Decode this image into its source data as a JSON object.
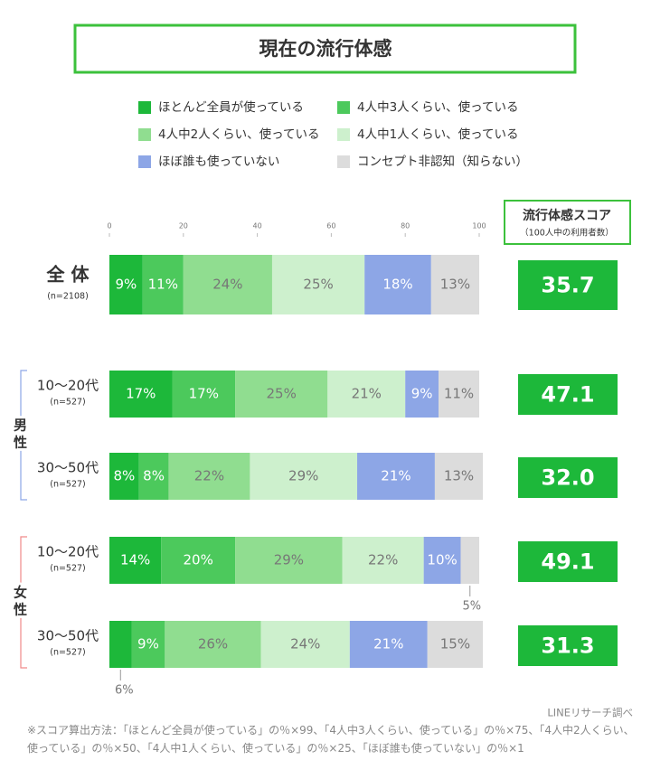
{
  "chart_data": {
    "type": "stacked_bar_horizontal",
    "title": "現在の流行体感",
    "categories": [
      "全 体",
      "10〜20代",
      "30〜50代",
      "10〜20代",
      "30〜50代"
    ],
    "category_notes": [
      "(n=2108)",
      "(n=527)",
      "(n=527)",
      "(n=527)",
      "(n=527)"
    ],
    "groups": [
      "男性",
      "女性"
    ],
    "xlim": [
      0,
      100
    ],
    "xticks": [
      0,
      20,
      40,
      60,
      80,
      100
    ],
    "series": [
      {
        "name": "ほとんど全員が使っている",
        "color": "#1db83a",
        "label_color": "#ffffff",
        "values": [
          9,
          17,
          8,
          14,
          6
        ],
        "value_labels": [
          "9%",
          "17%",
          "8%",
          "14%",
          "6%"
        ]
      },
      {
        "name": "4人中3人くらい、使っている",
        "color": "#4cc95c",
        "label_color": "#ffffff",
        "values": [
          11,
          17,
          8,
          20,
          9
        ],
        "value_labels": [
          "11%",
          "17%",
          "8%",
          "20%",
          "9%"
        ]
      },
      {
        "name": "4人中2人くらい、使っている",
        "color": "#90dd90",
        "label_color": "#777777",
        "values": [
          24,
          25,
          22,
          29,
          26
        ],
        "value_labels": [
          "24%",
          "25%",
          "22%",
          "29%",
          "26%"
        ]
      },
      {
        "name": "4人中1人くらい、使っている",
        "color": "#cdf0cd",
        "label_color": "#777777",
        "values": [
          25,
          21,
          29,
          22,
          24
        ],
        "value_labels": [
          "25%",
          "21%",
          "29%",
          "22%",
          "24%"
        ]
      },
      {
        "name": "ほぼ誰も使っていない",
        "color": "#8da6e6",
        "label_color": "#ffffff",
        "values": [
          18,
          9,
          21,
          10,
          21
        ],
        "value_labels": [
          "18%",
          "9%",
          "21%",
          "10%",
          "21%"
        ]
      },
      {
        "name": "コンセプト非認知（知らない）",
        "color": "#dcdcdc",
        "label_color": "#777777",
        "values": [
          13,
          11,
          13,
          5,
          15
        ],
        "value_labels": [
          "13%",
          "11%",
          "13%",
          "5%",
          "15%"
        ]
      }
    ],
    "score": {
      "title": "流行体感スコア",
      "subtitle": "（100人中の利用者数）",
      "color": "#1db83a",
      "values": [
        35.7,
        47.1,
        32.0,
        49.1,
        31.3
      ],
      "value_labels": [
        "35.7",
        "47.1",
        "32.0",
        "49.1",
        "31.3"
      ]
    },
    "source": "LINEリサーチ調べ",
    "note": "※スコア算出方法：「ほとんど全員が使っている」の％×99、「4人中3人くらい、使っている」の％×75、「4人中2人くらい、使っている」の％×50、「4人中1人くらい、使っている」の％×25、「ほぼ誰も使っていない」の％×1"
  }
}
